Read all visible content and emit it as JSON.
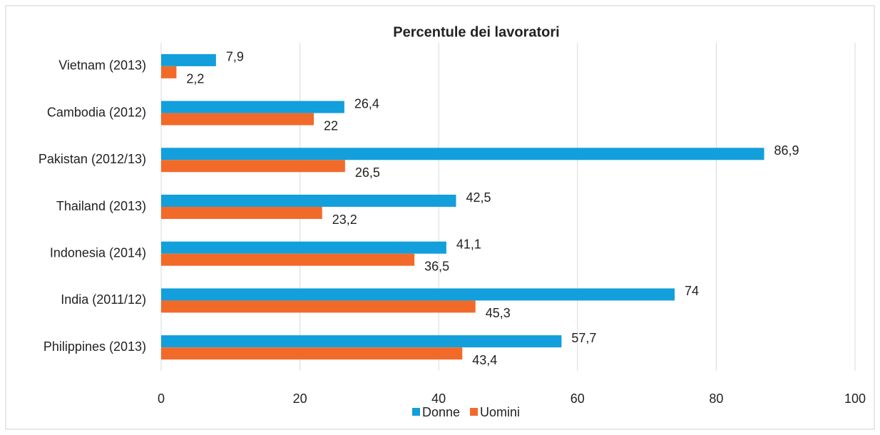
{
  "chart_data": {
    "type": "hbar",
    "title": "Percentule dei lavoratori",
    "categories": [
      "Vietnam (2013)",
      "Cambodia (2012)",
      "Pakistan (2012/13)",
      "Thailand (2013)",
      "Indonesia (2014)",
      "India (2011/12)",
      "Philippines (2013)"
    ],
    "series": [
      {
        "name": "Donne",
        "color": "#129fdb",
        "values": [
          7.9,
          26.4,
          86.9,
          42.5,
          41.1,
          74,
          57.7
        ],
        "value_labels": [
          "7,9",
          "26,4",
          "86,9",
          "42,5",
          "41,1",
          "74",
          "57,7"
        ]
      },
      {
        "name": "Uomini",
        "color": "#f26a2a",
        "values": [
          2.2,
          22,
          26.5,
          23.2,
          36.5,
          45.3,
          43.4
        ],
        "value_labels": [
          "2,2",
          "22",
          "26,5",
          "23,2",
          "36,5",
          "45,3",
          "43,4"
        ]
      }
    ],
    "xlim": [
      0,
      100
    ],
    "xticks": [
      0,
      20,
      40,
      60,
      80,
      100
    ],
    "grid": true,
    "legend": "bottom"
  }
}
